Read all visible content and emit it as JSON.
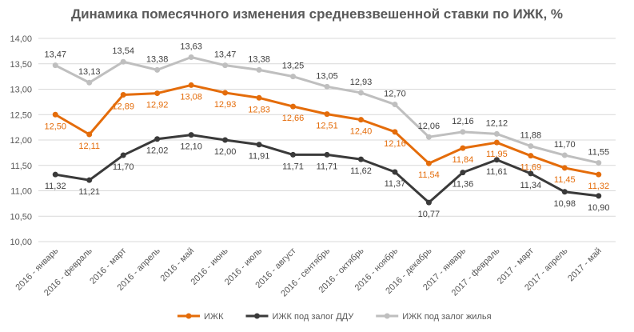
{
  "chart_data": {
    "type": "line",
    "title": "Динамика помесячного изменения средневзвешенной ставки по ИЖК, %",
    "xlabel": "",
    "ylabel": "",
    "ylim": [
      10.0,
      14.0
    ],
    "yticks": [
      "10,00",
      "10,50",
      "11,00",
      "11,50",
      "12,00",
      "12,50",
      "13,00",
      "13,50",
      "14,00"
    ],
    "grid": true,
    "legend": "bottom",
    "categories": [
      "2016 - январь",
      "2016 - февраль",
      "2016 - март",
      "2016 - апрель",
      "2016 - май",
      "2016 - июнь",
      "2016 - июль",
      "2016 - август",
      "2016 - сентябрь",
      "2016 - октябрь",
      "2016 - ноябрь",
      "2016 - декабрь",
      "2017 - январь",
      "2017 - февраль",
      "2017 - март",
      "2017 - апрель",
      "2017 - май"
    ],
    "series": [
      {
        "name": "ИЖК",
        "color": "#E46C0A",
        "values": [
          12.5,
          12.11,
          12.89,
          12.92,
          13.08,
          12.93,
          12.83,
          12.66,
          12.51,
          12.4,
          12.16,
          11.54,
          11.84,
          11.95,
          11.69,
          11.45,
          11.32
        ],
        "labels": [
          "12,50",
          "12,11",
          "12,89",
          "12,92",
          "13,08",
          "12,93",
          "12,83",
          "12,66",
          "12,51",
          "12,40",
          "12,16",
          "11,54",
          "11,84",
          "11,95",
          "11,69",
          "11,45",
          "11,32"
        ]
      },
      {
        "name": "ИЖК под залог ДДУ",
        "color": "#3A3A3A",
        "values": [
          11.32,
          11.21,
          11.7,
          12.02,
          12.1,
          12.0,
          11.91,
          11.71,
          11.71,
          11.62,
          11.37,
          10.77,
          11.36,
          11.61,
          11.34,
          10.98,
          10.9
        ],
        "labels": [
          "11,32",
          "11,21",
          "11,70",
          "12,02",
          "12,10",
          "12,00",
          "11,91",
          "11,71",
          "11,71",
          "11,62",
          "11,37",
          "10,77",
          "11,36",
          "11,61",
          "11,34",
          "10,98",
          "10,90"
        ]
      },
      {
        "name": "ИЖК под залог жилья",
        "color": "#BFBFBF",
        "values": [
          13.47,
          13.13,
          13.54,
          13.38,
          13.63,
          13.47,
          13.38,
          13.25,
          13.05,
          12.93,
          12.7,
          12.06,
          12.16,
          12.12,
          11.88,
          11.7,
          11.55
        ],
        "labels": [
          "13,47",
          "13,13",
          "13,54",
          "13,38",
          "13,63",
          "13,47",
          "13,38",
          "13,25",
          "13,05",
          "12,93",
          "12,70",
          "12,06",
          "12,16",
          "12,12",
          "11,88",
          "11,70",
          "11,55"
        ]
      }
    ]
  }
}
